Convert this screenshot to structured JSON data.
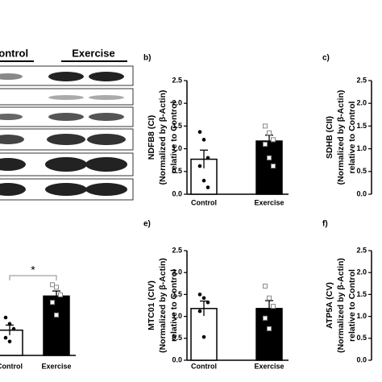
{
  "blot": {
    "groups": [
      "Control",
      "Exercise"
    ]
  },
  "chart_data": [
    {
      "type": "bar",
      "label": "b)",
      "ylabel": [
        "NDFB8 (CI)",
        "(Normalized by β-Actin)",
        "relative to Control"
      ],
      "categories": [
        "Control",
        "Exercise"
      ],
      "values": [
        0.77,
        1.17
      ],
      "errors": [
        0.2,
        0.13
      ],
      "points": [
        [
          1.37,
          1.2,
          0.8,
          0.62,
          0.3,
          0.15
        ],
        [
          1.5,
          1.35,
          1.2,
          1.1,
          0.8,
          0.62
        ]
      ],
      "colors": [
        "#ffffff",
        "#000000"
      ],
      "ylim": [
        0,
        2.5
      ],
      "yticks": [
        {
          "value": 0,
          "label": "0.0"
        },
        {
          "value": 0.5,
          "label": "0.5"
        },
        {
          "value": 1,
          "label": "1.0"
        },
        {
          "value": 1.5,
          "label": "1.5"
        },
        {
          "value": 2,
          "label": "2.0"
        },
        {
          "value": 2.5,
          "label": "2.5"
        }
      ]
    },
    {
      "type": "bar",
      "label": "c)",
      "ylabel": [
        "SDHB (CII)",
        "(Normalized by β-Actin)",
        "relative to Control"
      ],
      "ylim": [
        0,
        2.5
      ],
      "yticks": [
        {
          "value": 0,
          "label": "0.0"
        },
        {
          "value": 0.5,
          "label": "0.5"
        },
        {
          "value": 1,
          "label": "1.0"
        },
        {
          "value": 1.5,
          "label": "1.5"
        },
        {
          "value": 2,
          "label": "2.0"
        },
        {
          "value": 2.5,
          "label": "2.5"
        }
      ]
    },
    {
      "type": "bar",
      "annotation": "*",
      "categories": [
        "Control",
        "Exercise"
      ],
      "values": [
        1.0,
        2.35
      ],
      "errors": [
        0.2,
        0.2
      ],
      "points": [
        [
          1.5,
          1.25,
          1.05,
          0.7,
          0.55
        ],
        [
          2.8,
          2.7,
          2.4,
          2.1,
          1.6
        ]
      ],
      "colors": [
        "#ffffff",
        "#000000"
      ],
      "ylim": [
        0,
        4.5
      ]
    },
    {
      "type": "bar",
      "label": "e)",
      "ylabel": [
        "MTC01 (CIV)",
        "(Normalized by β-Actin)",
        "relative to Control"
      ],
      "categories": [
        "Control",
        "Exercise"
      ],
      "values": [
        1.18,
        1.18
      ],
      "errors": [
        0.17,
        0.18
      ],
      "points": [
        [
          1.5,
          1.42,
          1.32,
          1.12,
          0.53
        ],
        [
          1.69,
          1.42,
          1.23,
          0.96,
          0.72
        ]
      ],
      "colors": [
        "#ffffff",
        "#000000"
      ],
      "ylim": [
        0,
        2.5
      ],
      "yticks": [
        {
          "value": 0,
          "label": "0.0"
        },
        {
          "value": 0.5,
          "label": "0.5"
        },
        {
          "value": 1,
          "label": "1.0"
        },
        {
          "value": 1.5,
          "label": "1.5"
        },
        {
          "value": 2,
          "label": "2.0"
        },
        {
          "value": 2.5,
          "label": "2.5"
        }
      ]
    },
    {
      "type": "bar",
      "label": "f)",
      "ylabel": [
        "ATP5A (CV)",
        "(Normalized by β-Actin)",
        "relative to Control"
      ],
      "ylim": [
        0,
        2.5
      ],
      "yticks": [
        {
          "value": 0,
          "label": "0.0"
        },
        {
          "value": 0.5,
          "label": "0.5"
        },
        {
          "value": 1,
          "label": "1.0"
        },
        {
          "value": 1.5,
          "label": "1.5"
        },
        {
          "value": 2,
          "label": "2.0"
        },
        {
          "value": 2.5,
          "label": "2.5"
        }
      ]
    }
  ]
}
